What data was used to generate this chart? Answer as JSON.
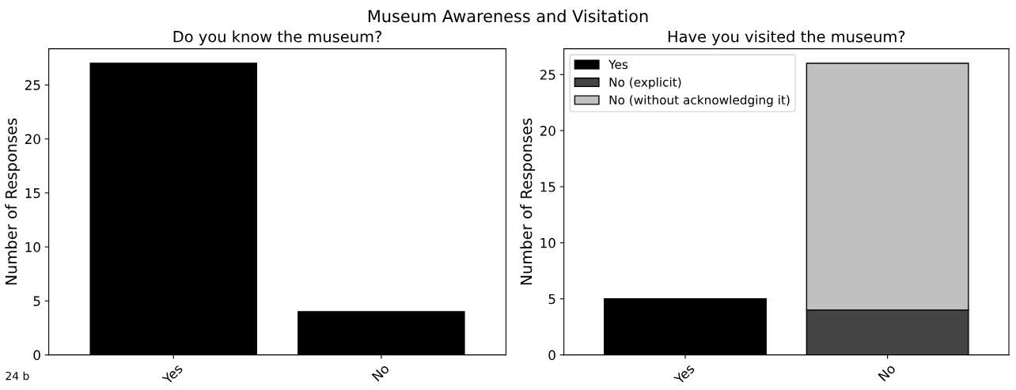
{
  "chart_data": [
    {
      "type": "bar",
      "title": "Do you know the museum?",
      "ylabel": "Number of Responses",
      "categories": [
        "Yes",
        "No"
      ],
      "values": [
        27,
        4
      ],
      "color": "#000000",
      "ylim": [
        0,
        28.35
      ],
      "yticks": [
        0,
        5,
        10,
        15,
        20,
        25
      ],
      "grid": false,
      "legend": false,
      "annotations": [
        "Museum Awareness and Visitation",
        "24 b"
      ]
    },
    {
      "type": "bar",
      "title": "Have you visited the museum?",
      "ylabel": "Number of Responses",
      "categories": [
        "Yes",
        "No"
      ],
      "stacked": true,
      "ylim": [
        0,
        27.3
      ],
      "yticks": [
        0,
        5,
        10,
        15,
        20,
        25
      ],
      "grid": false,
      "legend": "top left",
      "series": [
        {
          "name": "Yes",
          "color": "#000000",
          "values": [
            5,
            null
          ]
        },
        {
          "name": "No (explicit)",
          "color": "#444444",
          "values": [
            null,
            4
          ]
        },
        {
          "name": "No (without acknowledging it)",
          "color": "#c0c0c0",
          "values": [
            null,
            22
          ]
        }
      ]
    }
  ]
}
